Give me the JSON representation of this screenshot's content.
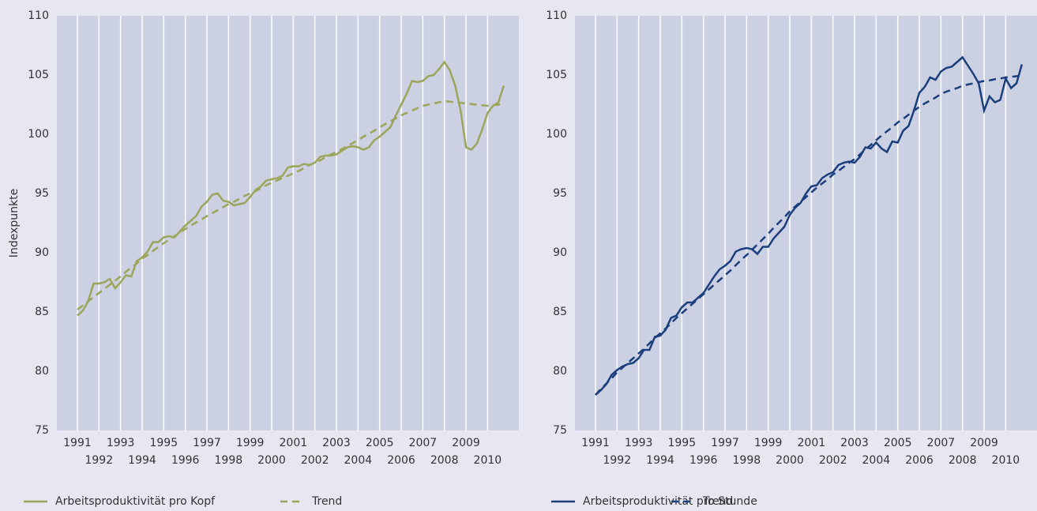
{
  "chart_data": [
    {
      "type": "line",
      "ylabel": "Indexpunkte",
      "x": [
        1991,
        1991.25,
        1991.5,
        1991.75,
        1992,
        1992.25,
        1992.5,
        1992.75,
        1993,
        1993.25,
        1993.5,
        1993.75,
        1994,
        1994.25,
        1994.5,
        1994.75,
        1995,
        1995.25,
        1995.5,
        1995.75,
        1996,
        1996.25,
        1996.5,
        1996.75,
        1997,
        1997.25,
        1997.5,
        1997.75,
        1998,
        1998.25,
        1998.5,
        1998.75,
        1999,
        1999.25,
        1999.5,
        1999.75,
        2000,
        2000.25,
        2000.5,
        2000.75,
        2001,
        2001.25,
        2001.5,
        2001.75,
        2002,
        2002.25,
        2002.5,
        2002.75,
        2003,
        2003.25,
        2003.5,
        2003.75,
        2004,
        2004.25,
        2004.5,
        2004.75,
        2005,
        2005.25,
        2005.5,
        2005.75,
        2006,
        2006.25,
        2006.5,
        2006.75,
        2007,
        2007.25,
        2007.5,
        2007.75,
        2008,
        2008.25,
        2008.5,
        2008.75,
        2009,
        2009.25,
        2009.5,
        2009.75,
        2010,
        2010.25,
        2010.5,
        2010.75
      ],
      "xlim": [
        1990.05,
        2011.45
      ],
      "xticks": [
        1991,
        1992,
        1993,
        1994,
        1995,
        1996,
        1997,
        1998,
        1999,
        2000,
        2001,
        2002,
        2003,
        2004,
        2005,
        2006,
        2007,
        2008,
        2009,
        2010
      ],
      "ylim": [
        75,
        110
      ],
      "yticks": [
        75,
        80,
        85,
        90,
        95,
        100,
        105,
        110
      ],
      "grid": true,
      "series": [
        {
          "name": "Arbeitsproduktivität pro Kopf",
          "color": "#9ca55a",
          "style": "solid",
          "values": [
            84.7,
            85.1,
            85.9,
            87.4,
            87.4,
            87.5,
            87.8,
            87.0,
            87.5,
            88.1,
            88.0,
            89.3,
            89.6,
            90.1,
            90.9,
            90.9,
            91.3,
            91.4,
            91.3,
            91.8,
            92.3,
            92.7,
            93.1,
            93.9,
            94.3,
            94.9,
            95.0,
            94.4,
            94.3,
            94.0,
            94.1,
            94.2,
            94.7,
            95.3,
            95.6,
            96.1,
            96.2,
            96.3,
            96.5,
            97.2,
            97.3,
            97.3,
            97.5,
            97.4,
            97.6,
            98.1,
            98.2,
            98.2,
            98.3,
            98.6,
            98.9,
            99.0,
            98.9,
            98.7,
            98.9,
            99.5,
            99.8,
            100.2,
            100.6,
            101.6,
            102.5,
            103.4,
            104.5,
            104.4,
            104.5,
            104.9,
            105.0,
            105.5,
            106.1,
            105.4,
            104.1,
            102.0,
            98.9,
            98.7,
            99.2,
            100.4,
            101.8,
            102.4,
            102.7,
            104.1
          ]
        },
        {
          "name": "Trend",
          "color": "#9ca55a",
          "style": "dashed",
          "values": [
            85.2,
            85.55,
            85.9,
            86.25,
            86.6,
            86.95,
            87.3,
            87.65,
            88.0,
            88.4,
            88.75,
            89.1,
            89.5,
            89.8,
            90.15,
            90.5,
            90.8,
            91.1,
            91.4,
            91.7,
            92.0,
            92.3,
            92.55,
            92.8,
            93.1,
            93.35,
            93.6,
            93.85,
            94.1,
            94.3,
            94.55,
            94.8,
            95.0,
            95.2,
            95.45,
            95.7,
            95.9,
            96.1,
            96.3,
            96.5,
            96.7,
            96.9,
            97.15,
            97.4,
            97.6,
            97.8,
            98.05,
            98.3,
            98.5,
            98.75,
            99.0,
            99.25,
            99.5,
            99.8,
            100.05,
            100.3,
            100.6,
            100.85,
            101.1,
            101.35,
            101.6,
            101.8,
            102.0,
            102.2,
            102.4,
            102.5,
            102.6,
            102.7,
            102.8,
            102.75,
            102.7,
            102.65,
            102.6,
            102.55,
            102.5,
            102.45,
            102.4,
            102.45,
            102.5,
            102.6
          ]
        }
      ]
    },
    {
      "type": "line",
      "x": [
        1991,
        1991.25,
        1991.5,
        1991.75,
        1992,
        1992.25,
        1992.5,
        1992.75,
        1993,
        1993.25,
        1993.5,
        1993.75,
        1994,
        1994.25,
        1994.5,
        1994.75,
        1995,
        1995.25,
        1995.5,
        1995.75,
        1996,
        1996.25,
        1996.5,
        1996.75,
        1997,
        1997.25,
        1997.5,
        1997.75,
        1998,
        1998.25,
        1998.5,
        1998.75,
        1999,
        1999.25,
        1999.5,
        1999.75,
        2000,
        2000.25,
        2000.5,
        2000.75,
        2001,
        2001.25,
        2001.5,
        2001.75,
        2002,
        2002.25,
        2002.5,
        2002.75,
        2003,
        2003.25,
        2003.5,
        2003.75,
        2004,
        2004.25,
        2004.5,
        2004.75,
        2005,
        2005.25,
        2005.5,
        2005.75,
        2006,
        2006.25,
        2006.5,
        2006.75,
        2007,
        2007.25,
        2007.5,
        2007.75,
        2008,
        2008.25,
        2008.5,
        2008.75,
        2009,
        2009.25,
        2009.5,
        2009.75,
        2010,
        2010.25,
        2010.5,
        2010.75
      ],
      "xlim": [
        1990.05,
        2011.45
      ],
      "xticks": [
        1991,
        1992,
        1993,
        1994,
        1995,
        1996,
        1997,
        1998,
        1999,
        2000,
        2001,
        2002,
        2003,
        2004,
        2005,
        2006,
        2007,
        2008,
        2009,
        2010
      ],
      "ylim": [
        75,
        110
      ],
      "yticks": [
        75,
        80,
        85,
        90,
        95,
        100,
        105,
        110
      ],
      "grid": true,
      "series": [
        {
          "name": "Arbeitsproduktivität pro Stunde",
          "color": "#1b3f7c",
          "style": "solid",
          "values": [
            78.0,
            78.4,
            78.9,
            79.7,
            80.1,
            80.4,
            80.6,
            80.7,
            81.1,
            81.8,
            81.8,
            82.9,
            83.0,
            83.5,
            84.5,
            84.7,
            85.4,
            85.8,
            85.8,
            86.2,
            86.6,
            87.3,
            88.0,
            88.6,
            88.9,
            89.3,
            90.1,
            90.3,
            90.4,
            90.3,
            89.9,
            90.5,
            90.5,
            91.2,
            91.7,
            92.2,
            93.2,
            93.8,
            94.2,
            95.0,
            95.6,
            95.7,
            96.3,
            96.6,
            96.8,
            97.4,
            97.6,
            97.7,
            97.6,
            98.1,
            98.9,
            98.8,
            99.3,
            98.8,
            98.5,
            99.4,
            99.3,
            100.3,
            100.7,
            102.0,
            103.5,
            104.0,
            104.8,
            104.6,
            105.3,
            105.6,
            105.7,
            106.1,
            106.5,
            105.8,
            105.1,
            104.3,
            102.0,
            103.2,
            102.7,
            102.9,
            104.7,
            103.9,
            104.3,
            105.9
          ]
        },
        {
          "name": "Trend",
          "color": "#1b3f7c",
          "style": "dashed",
          "values": [
            78.0,
            78.5,
            78.95,
            79.4,
            79.9,
            80.3,
            80.7,
            81.1,
            81.5,
            81.9,
            82.35,
            82.8,
            83.2,
            83.6,
            84.05,
            84.5,
            84.9,
            85.3,
            85.7,
            86.1,
            86.5,
            86.9,
            87.3,
            87.7,
            88.1,
            88.5,
            88.95,
            89.4,
            89.8,
            90.25,
            90.7,
            91.15,
            91.6,
            92.1,
            92.55,
            93.0,
            93.5,
            93.9,
            94.3,
            94.7,
            95.1,
            95.5,
            95.85,
            96.2,
            96.6,
            96.9,
            97.25,
            97.6,
            97.9,
            98.3,
            98.7,
            99.1,
            99.5,
            99.9,
            100.25,
            100.6,
            101.0,
            101.3,
            101.65,
            102.0,
            102.3,
            102.6,
            102.85,
            103.1,
            103.4,
            103.6,
            103.75,
            103.9,
            104.1,
            104.2,
            104.3,
            104.4,
            104.5,
            104.55,
            104.65,
            104.7,
            104.8,
            104.85,
            104.9,
            105.0
          ]
        }
      ]
    }
  ]
}
